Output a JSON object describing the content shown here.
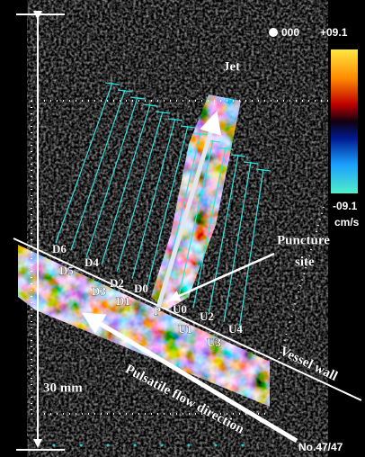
{
  "header": {
    "frame_indicator": "000",
    "scale_max": "+09.1"
  },
  "color_scale": {
    "min": "-09.1",
    "unit": "cm/s"
  },
  "annotations": {
    "jet": "Jet",
    "puncture": [
      "Puncture",
      "site"
    ],
    "vessel_wall": "Vessel wall",
    "flow": "Pulsatile flow direction",
    "depth": "30 mm"
  },
  "sites": [
    "D6",
    "D4",
    "D5",
    "D2",
    "D0",
    "D3",
    "D1",
    "P",
    "U0",
    "U2",
    "U1",
    "U4",
    "U3"
  ],
  "footer": {
    "frame": "No.47/47"
  }
}
